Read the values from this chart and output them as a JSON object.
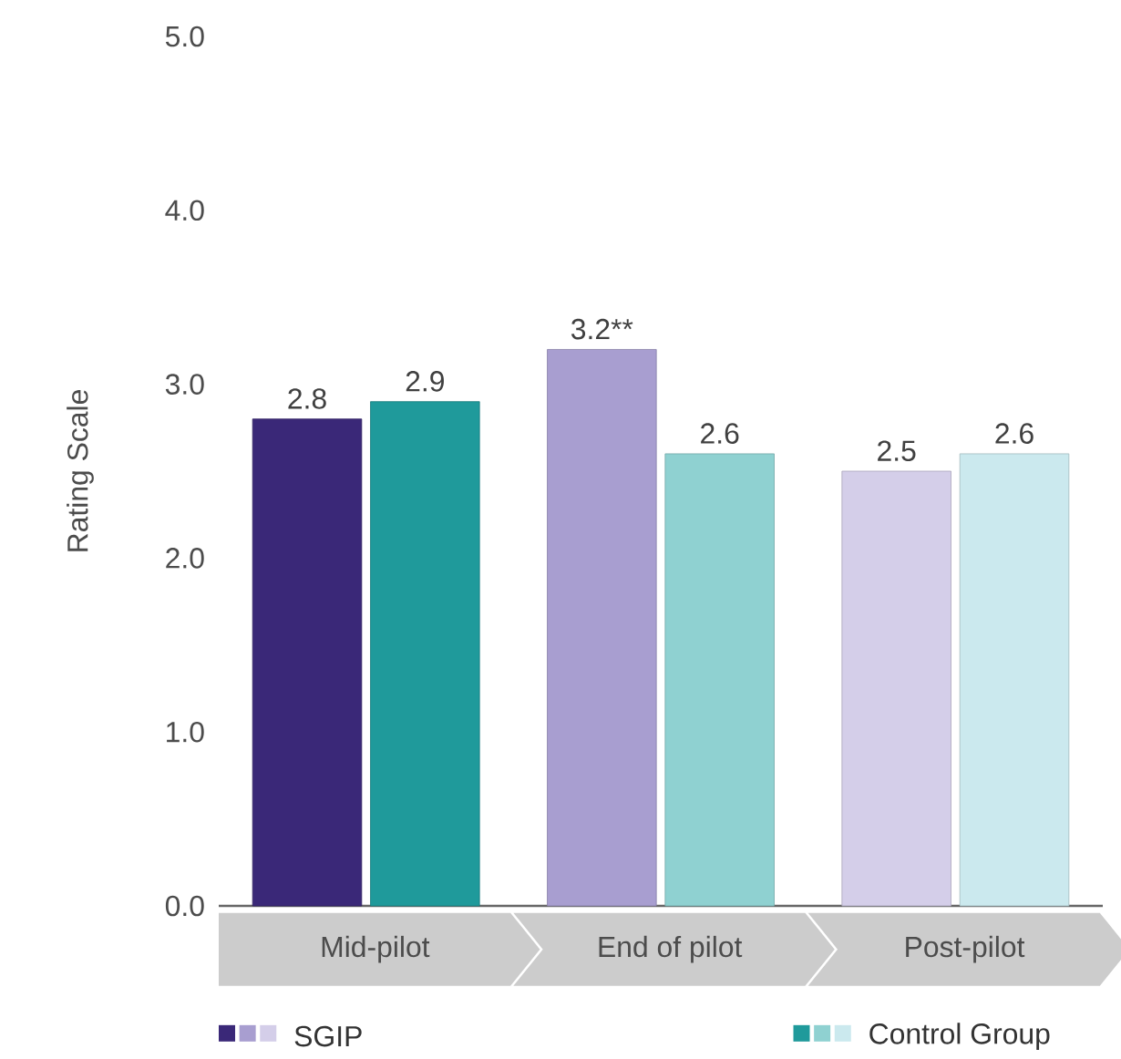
{
  "chart_data": {
    "type": "bar",
    "ylabel": "Rating Scale",
    "categories": [
      "Mid-pilot",
      "End of pilot",
      "Post-pilot"
    ],
    "series": [
      {
        "name": "SGIP",
        "colors": [
          "#3a2878",
          "#a89ed0",
          "#d4cee9"
        ],
        "values": [
          2.8,
          3.2,
          2.5
        ],
        "value_labels": [
          "2.8",
          "3.2**",
          "2.5"
        ]
      },
      {
        "name": "Control Group",
        "colors": [
          "#1f9a9b",
          "#8fd1d1",
          "#cbe9ee"
        ],
        "values": [
          2.9,
          2.6,
          2.6
        ],
        "value_labels": [
          "2.9",
          "2.6",
          "2.6"
        ]
      }
    ],
    "ylim": [
      0,
      5
    ],
    "yticks": [
      {
        "value": 0,
        "label": "0.0"
      },
      {
        "value": 1,
        "label": "1.0"
      },
      {
        "value": 2,
        "label": "2.0"
      },
      {
        "value": 3,
        "label": "3.0"
      },
      {
        "value": 4,
        "label": "4.0"
      },
      {
        "value": 5,
        "label": "5.0"
      }
    ],
    "legend": "bottom",
    "grid": false
  }
}
